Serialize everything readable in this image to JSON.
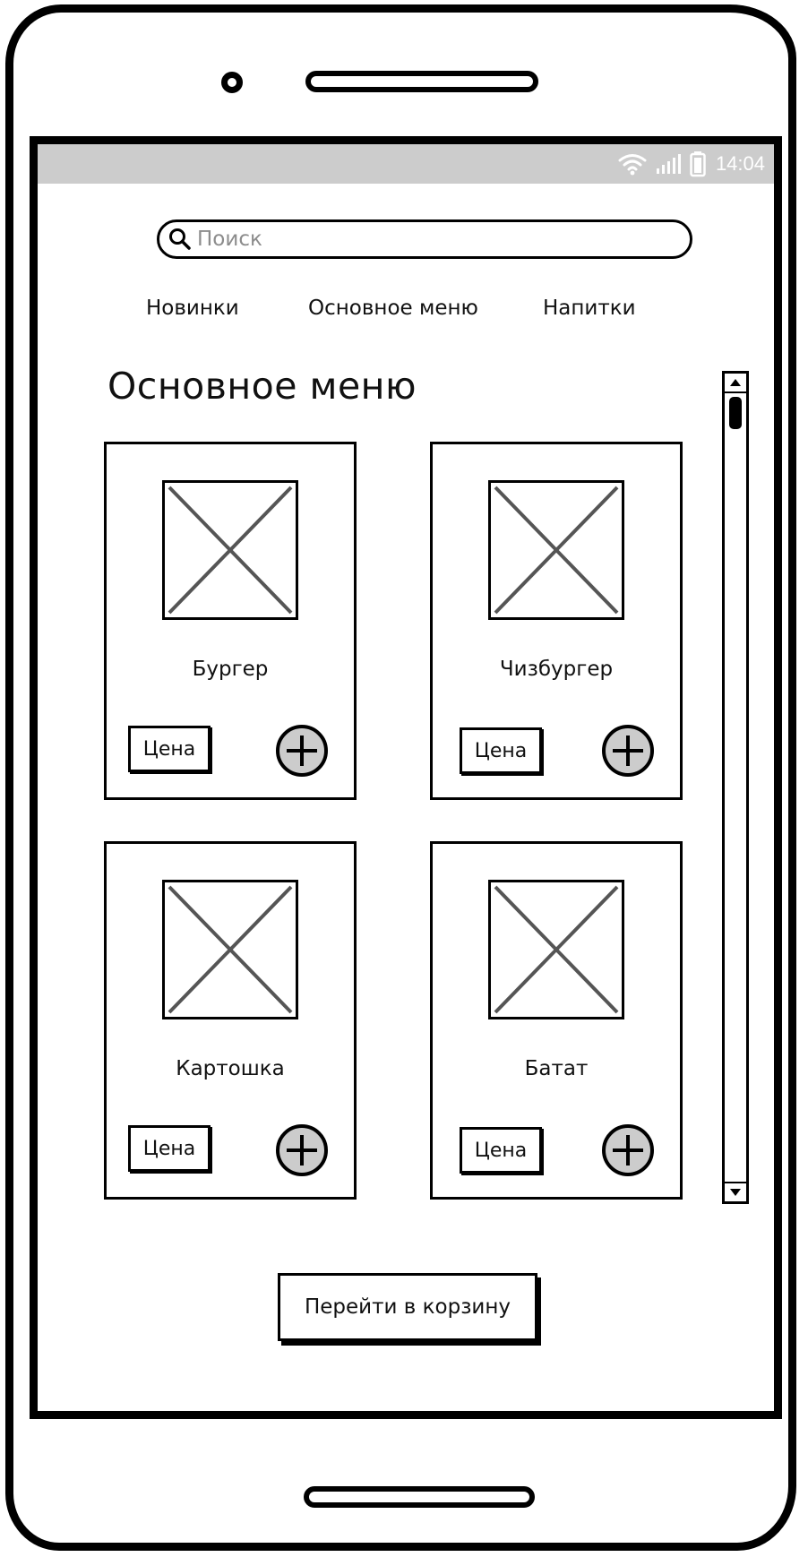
{
  "status_bar": {
    "time": "14:04",
    "icons": [
      "wifi-icon",
      "signal-icon",
      "battery-icon"
    ]
  },
  "search": {
    "placeholder": "Поиск",
    "value": ""
  },
  "tabs": [
    {
      "label": "Новинки"
    },
    {
      "label": "Основное меню"
    },
    {
      "label": "Напитки"
    }
  ],
  "section": {
    "title": "Основное меню"
  },
  "products": [
    {
      "name": "Бургер",
      "price_label": "Цена",
      "image_icon": "image-placeholder-icon",
      "add_icon": "plus-circle-icon"
    },
    {
      "name": "Чизбургер",
      "price_label": "Цена",
      "image_icon": "image-placeholder-icon",
      "add_icon": "plus-circle-icon"
    },
    {
      "name": "Картошка",
      "price_label": "Цена",
      "image_icon": "image-placeholder-icon",
      "add_icon": "plus-circle-icon"
    },
    {
      "name": "Батат",
      "price_label": "Цена",
      "image_icon": "image-placeholder-icon",
      "add_icon": "plus-circle-icon"
    }
  ],
  "cart": {
    "button_label": "Перейти в корзину"
  },
  "colors": {
    "status_bar_bg": "#cccccc",
    "add_button_fill": "#cccccc",
    "placeholder_image_stroke": "#555555",
    "outline": "#000000"
  }
}
